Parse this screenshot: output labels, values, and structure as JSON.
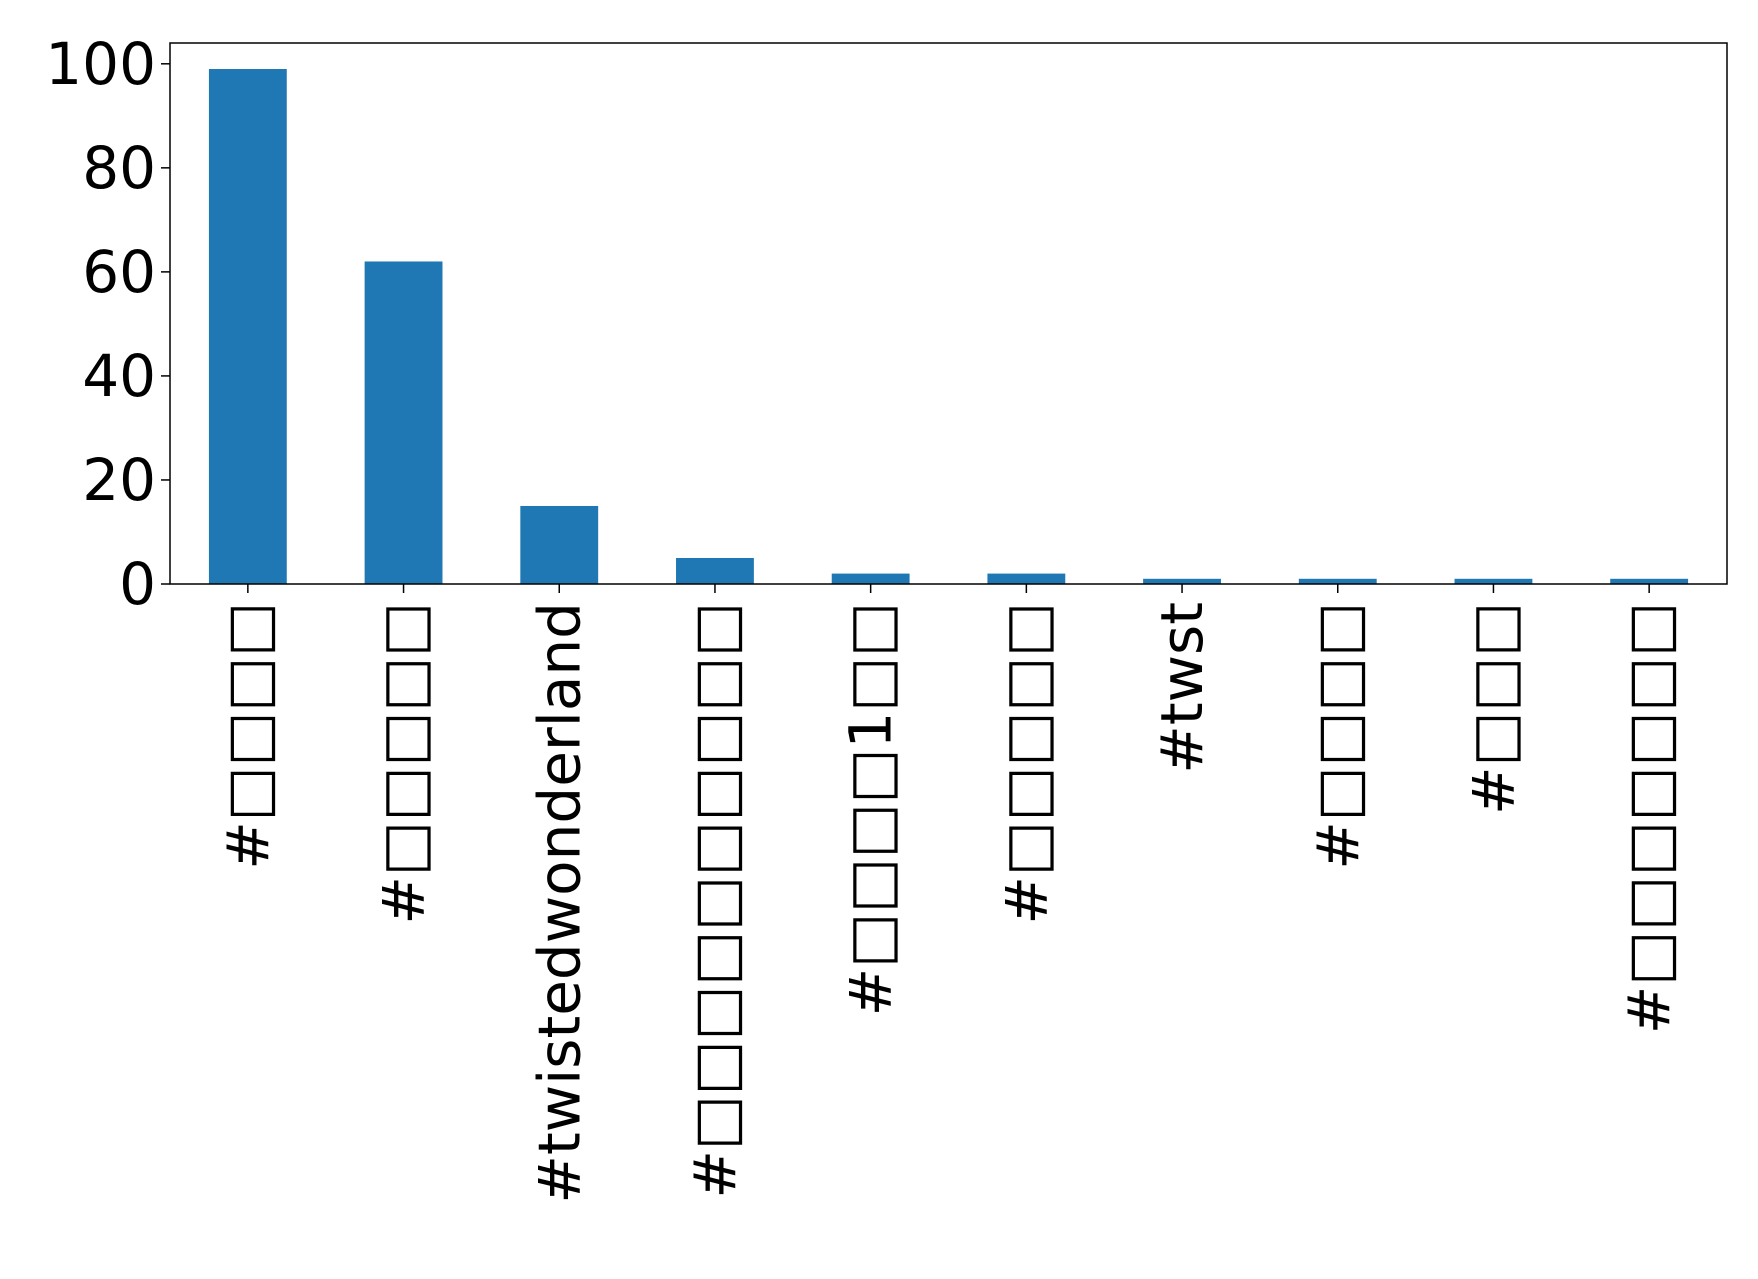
{
  "chart_data": {
    "type": "bar",
    "title": "",
    "xlabel": "",
    "ylabel": "",
    "categories": [
      "#□□□□",
      "#□□□□□",
      "#twistedwonderland",
      "#□□□□□□□□□□",
      "#□□□□1□□",
      "#□□□□□",
      "#twst",
      "#□□□□",
      "#□□□",
      "#□□□□□□□"
    ],
    "values": [
      99,
      62,
      15,
      5,
      2,
      2,
      1,
      1,
      1,
      1
    ],
    "ylim": [
      0,
      104
    ],
    "yticks": [
      0,
      20,
      40,
      60,
      80,
      100
    ],
    "bar_color": "#1f77b4",
    "grid": false,
    "legend": "none"
  }
}
